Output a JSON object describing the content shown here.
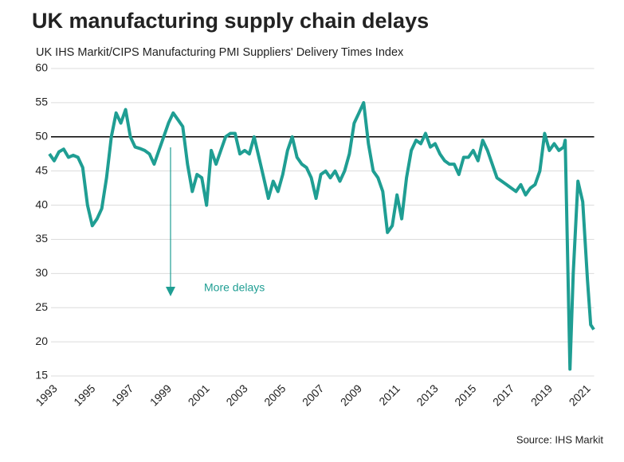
{
  "chart_data": {
    "type": "line",
    "title": "UK manufacturing supply chain delays",
    "subtitle": "UK IHS Markit/CIPS Manufacturing PMI Suppliers' Delivery Times Index",
    "source": "Source: IHS Markit",
    "annotation": "More delays",
    "x": [
      1993.0,
      1993.25,
      1993.5,
      1993.75,
      1994.0,
      1994.25,
      1994.5,
      1994.75,
      1995.0,
      1995.25,
      1995.5,
      1995.75,
      1996.0,
      1996.25,
      1996.5,
      1996.75,
      1997.0,
      1997.25,
      1997.5,
      1997.75,
      1998.0,
      1998.25,
      1998.5,
      1998.75,
      1999.0,
      1999.25,
      1999.5,
      1999.75,
      2000.0,
      2000.25,
      2000.5,
      2000.75,
      2001.0,
      2001.25,
      2001.5,
      2001.75,
      2002.0,
      2002.25,
      2002.5,
      2002.75,
      2003.0,
      2003.25,
      2003.5,
      2003.75,
      2004.0,
      2004.25,
      2004.5,
      2004.75,
      2005.0,
      2005.25,
      2005.5,
      2005.75,
      2006.0,
      2006.25,
      2006.5,
      2006.75,
      2007.0,
      2007.25,
      2007.5,
      2007.75,
      2008.0,
      2008.25,
      2008.5,
      2008.75,
      2009.0,
      2009.25,
      2009.5,
      2009.75,
      2010.0,
      2010.25,
      2010.5,
      2010.75,
      2011.0,
      2011.25,
      2011.5,
      2011.75,
      2012.0,
      2012.25,
      2012.5,
      2012.75,
      2013.0,
      2013.25,
      2013.5,
      2013.75,
      2014.0,
      2014.25,
      2014.5,
      2014.75,
      2015.0,
      2015.25,
      2015.5,
      2015.75,
      2016.0,
      2016.25,
      2016.5,
      2016.75,
      2017.0,
      2017.25,
      2017.5,
      2017.75,
      2018.0,
      2018.25,
      2018.5,
      2018.75,
      2019.0,
      2019.25,
      2019.5,
      2019.75,
      2020.0,
      2020.08,
      2020.33,
      2020.5,
      2020.75,
      2021.0,
      2021.25,
      2021.42,
      2021.58
    ],
    "series": [
      {
        "name": "Suppliers' Delivery Times Index",
        "color": "#1f9e93",
        "values": [
          47.5,
          46.5,
          47.8,
          48.2,
          47.0,
          47.3,
          47.0,
          45.5,
          40,
          37,
          38,
          39.5,
          44,
          50,
          53.5,
          52,
          54,
          50,
          48.5,
          48.3,
          48,
          47.5,
          46,
          48,
          50,
          52,
          53.5,
          52.5,
          51.5,
          46,
          42,
          44.5,
          44,
          40,
          48,
          46,
          48,
          50,
          50.5,
          50.5,
          47.5,
          48,
          47.5,
          50,
          47,
          44,
          41,
          43.5,
          42,
          44.5,
          48,
          50,
          47,
          46,
          45.5,
          44,
          41,
          44.5,
          45,
          44,
          45,
          43.5,
          45,
          47.5,
          52,
          53.5,
          55,
          49,
          45,
          44,
          42,
          36,
          37,
          41.5,
          38,
          44,
          48,
          49.5,
          49,
          50.5,
          48.5,
          49,
          47.5,
          46.5,
          46,
          46,
          44.5,
          47,
          47,
          48,
          46.5,
          49.5,
          48,
          46,
          44,
          43.5,
          43,
          42.5,
          42,
          43,
          41.5,
          42.5,
          43,
          45,
          50.5,
          48,
          49,
          48,
          48.5,
          49.5,
          16,
          30,
          43.5,
          40.5,
          29,
          22.5,
          21.8
        ]
      }
    ],
    "reference_line": 50,
    "xlim": [
      1993,
      2021.6
    ],
    "xticks": [
      1993,
      1995,
      1997,
      1999,
      2001,
      2003,
      2005,
      2007,
      2009,
      2011,
      2013,
      2015,
      2017,
      2019,
      2021
    ],
    "ylim": [
      15,
      60
    ],
    "yticks": [
      15,
      20,
      25,
      30,
      35,
      40,
      45,
      50,
      55,
      60
    ],
    "grid": true
  }
}
